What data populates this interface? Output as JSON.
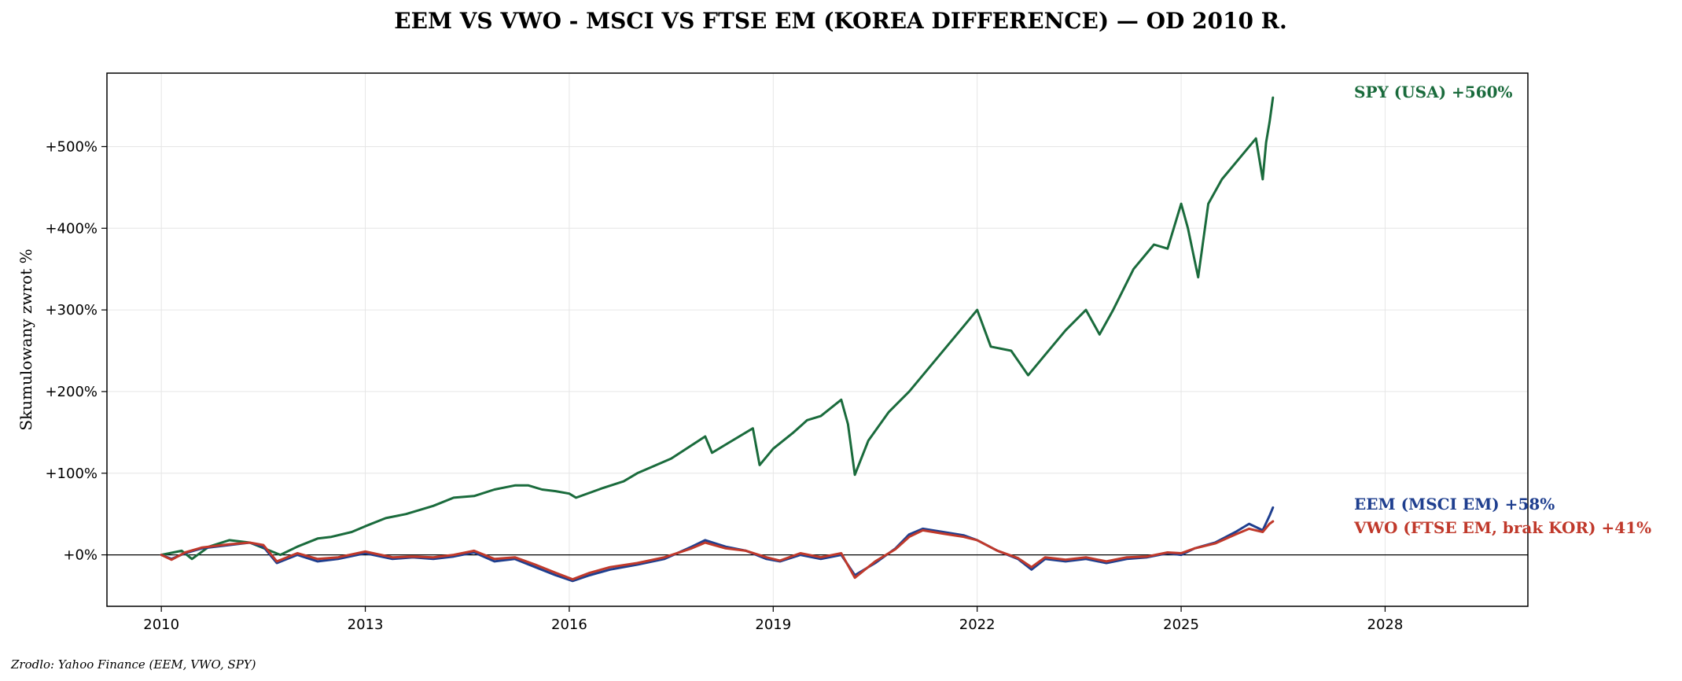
{
  "chart_data": {
    "type": "line",
    "title": "EEM VS VWO - MSCI VS FTSE EM (KOREA DIFFERENCE) — OD 2010 R.",
    "ylabel": "Skumulowany zwrot %",
    "xlabel": "",
    "source": "Zrodlo: Yahoo Finance (EEM, VWO, SPY)",
    "xlim": [
      2009.2,
      2030.1
    ],
    "ylim": [
      -63,
      590
    ],
    "x_ticks": [
      2010,
      2013,
      2016,
      2019,
      2022,
      2025,
      2028
    ],
    "x_tick_labels": [
      "2010",
      "2013",
      "2016",
      "2019",
      "2022",
      "2025",
      "2028"
    ],
    "y_ticks": [
      0,
      100,
      200,
      300,
      400,
      500
    ],
    "y_tick_labels": [
      "+0%",
      "+100%",
      "+200%",
      "+300%",
      "+400%",
      "+500%"
    ],
    "grid": true,
    "zero_line": true,
    "series": [
      {
        "name": "SPY (USA)",
        "end_label": "SPY (USA)  +560%",
        "color": "#1a6b3c",
        "x": [
          2010.0,
          2010.3,
          2010.45,
          2010.7,
          2011.0,
          2011.3,
          2011.6,
          2011.75,
          2012.0,
          2012.3,
          2012.5,
          2012.8,
          2013.0,
          2013.3,
          2013.6,
          2014.0,
          2014.3,
          2014.6,
          2014.9,
          2015.2,
          2015.4,
          2015.6,
          2015.8,
          2016.0,
          2016.1,
          2016.5,
          2016.8,
          2017.0,
          2017.5,
          2018.0,
          2018.1,
          2018.3,
          2018.7,
          2018.8,
          2019.0,
          2019.3,
          2019.5,
          2019.7,
          2020.0,
          2020.1,
          2020.2,
          2020.4,
          2020.7,
          2021.0,
          2021.4,
          2021.8,
          2022.0,
          2022.2,
          2022.5,
          2022.75,
          2023.0,
          2023.3,
          2023.6,
          2023.8,
          2024.0,
          2024.3,
          2024.6,
          2024.8,
          2025.0,
          2025.1,
          2025.25,
          2025.4,
          2025.6,
          2025.9,
          2026.1,
          2026.2,
          2026.25,
          2026.3,
          2026.35
        ],
        "values": [
          0,
          5,
          -5,
          10,
          18,
          15,
          5,
          0,
          10,
          20,
          22,
          28,
          35,
          45,
          50,
          60,
          70,
          72,
          80,
          85,
          85,
          80,
          78,
          75,
          70,
          82,
          90,
          100,
          118,
          145,
          125,
          135,
          155,
          110,
          130,
          150,
          165,
          170,
          190,
          160,
          98,
          140,
          175,
          200,
          240,
          280,
          300,
          255,
          250,
          220,
          245,
          275,
          300,
          270,
          300,
          350,
          380,
          375,
          430,
          400,
          340,
          430,
          460,
          490,
          510,
          460,
          505,
          530,
          560
        ]
      },
      {
        "name": "EEM (MSCI EM)",
        "end_label": "EEM (MSCI EM)  +58%",
        "color": "#1f3f8f",
        "x": [
          2010.0,
          2010.15,
          2010.35,
          2010.6,
          2011.0,
          2011.3,
          2011.5,
          2011.7,
          2012.0,
          2012.3,
          2012.6,
          2013.0,
          2013.4,
          2013.7,
          2014.0,
          2014.3,
          2014.6,
          2014.9,
          2015.2,
          2015.5,
          2015.8,
          2016.05,
          2016.3,
          2016.6,
          2017.0,
          2017.4,
          2017.8,
          2018.0,
          2018.3,
          2018.6,
          2018.9,
          2019.1,
          2019.4,
          2019.7,
          2020.0,
          2020.2,
          2020.5,
          2020.8,
          2021.0,
          2021.2,
          2021.5,
          2021.8,
          2022.0,
          2022.3,
          2022.6,
          2022.8,
          2023.0,
          2023.3,
          2023.6,
          2023.9,
          2024.2,
          2024.5,
          2024.8,
          2025.0,
          2025.2,
          2025.5,
          2025.8,
          2026.0,
          2026.2,
          2026.3,
          2026.35
        ],
        "values": [
          0,
          -5,
          2,
          8,
          12,
          15,
          10,
          -10,
          0,
          -8,
          -5,
          2,
          -5,
          -3,
          -5,
          -2,
          3,
          -8,
          -5,
          -15,
          -25,
          -32,
          -25,
          -18,
          -12,
          -5,
          10,
          18,
          10,
          5,
          -5,
          -8,
          0,
          -5,
          0,
          -25,
          -10,
          8,
          25,
          32,
          28,
          24,
          18,
          5,
          -5,
          -18,
          -5,
          -8,
          -5,
          -10,
          -5,
          -3,
          2,
          0,
          8,
          15,
          28,
          38,
          30,
          48,
          58
        ]
      },
      {
        "name": "VWO (FTSE EM, brak KOR)",
        "end_label": "VWO (FTSE EM, brak KOR)  +41%",
        "color": "#c0392b",
        "x": [
          2010.0,
          2010.15,
          2010.35,
          2010.6,
          2011.0,
          2011.3,
          2011.5,
          2011.7,
          2012.0,
          2012.3,
          2012.6,
          2013.0,
          2013.4,
          2013.7,
          2014.0,
          2014.3,
          2014.6,
          2014.9,
          2015.2,
          2015.5,
          2015.8,
          2016.05,
          2016.3,
          2016.6,
          2017.0,
          2017.4,
          2017.8,
          2018.0,
          2018.3,
          2018.6,
          2018.9,
          2019.1,
          2019.4,
          2019.7,
          2020.0,
          2020.2,
          2020.5,
          2020.8,
          2021.0,
          2021.2,
          2021.5,
          2021.8,
          2022.0,
          2022.3,
          2022.6,
          2022.8,
          2023.0,
          2023.3,
          2023.6,
          2023.9,
          2024.2,
          2024.5,
          2024.8,
          2025.0,
          2025.2,
          2025.5,
          2025.8,
          2026.0,
          2026.2,
          2026.3,
          2026.35
        ],
        "values": [
          0,
          -6,
          3,
          9,
          13,
          15,
          12,
          -8,
          2,
          -5,
          -3,
          4,
          -3,
          -2,
          -3,
          0,
          5,
          -5,
          -3,
          -12,
          -22,
          -30,
          -22,
          -15,
          -10,
          -3,
          8,
          15,
          8,
          5,
          -3,
          -7,
          2,
          -3,
          2,
          -28,
          -8,
          7,
          22,
          30,
          26,
          22,
          18,
          5,
          -4,
          -15,
          -3,
          -6,
          -3,
          -8,
          -3,
          -2,
          3,
          2,
          8,
          14,
          25,
          32,
          28,
          38,
          41
        ]
      }
    ]
  }
}
